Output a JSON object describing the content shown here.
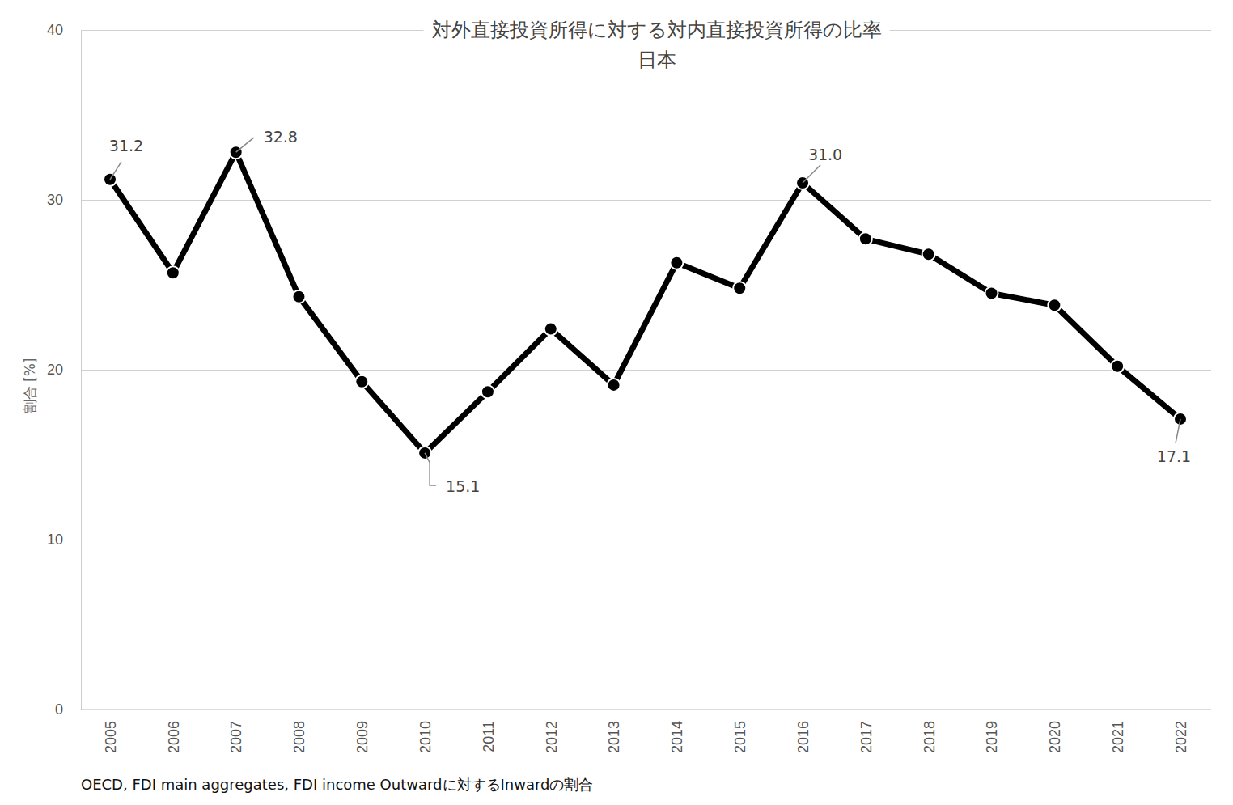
{
  "chart_data": {
    "type": "line",
    "title": "対外直接投資所得に対する対内直接投資所得の比率",
    "subtitle": "日本",
    "y_label": "割合 [%]",
    "source": "OECD, FDI main aggregates, FDI income Outwardに対するInwardの割合",
    "categories": [
      "2005",
      "2006",
      "2007",
      "2008",
      "2009",
      "2010",
      "2011",
      "2012",
      "2013",
      "2014",
      "2015",
      "2016",
      "2017",
      "2018",
      "2019",
      "2020",
      "2021",
      "2022"
    ],
    "values": [
      31.2,
      25.7,
      32.8,
      24.3,
      19.3,
      15.1,
      18.7,
      22.4,
      19.1,
      26.3,
      24.8,
      31.0,
      27.7,
      26.8,
      24.5,
      23.8,
      20.2,
      17.1
    ],
    "value_labels": [
      "31.2",
      null,
      "32.8",
      null,
      null,
      "15.1",
      null,
      null,
      null,
      null,
      null,
      "31.0",
      null,
      null,
      null,
      null,
      null,
      "17.1"
    ],
    "data_labels": true,
    "color": "#000000",
    "marker": "circle",
    "ylim": [
      0,
      40
    ],
    "yticks": [
      0,
      10,
      20,
      30,
      40
    ],
    "grid": true
  }
}
